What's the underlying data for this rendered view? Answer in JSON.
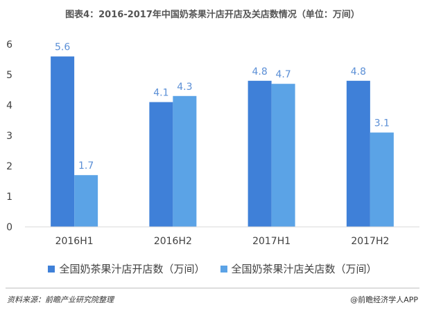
{
  "chart_data": {
    "type": "bar",
    "title": "图表4：2016-2017年中国奶茶果汁店开店及关店数情况（单位：万间）",
    "categories": [
      "2016H1",
      "2016H2",
      "2017H1",
      "2017H2"
    ],
    "series": [
      {
        "name": "全国奶茶果汁店开店数（万间）",
        "values": [
          5.6,
          4.1,
          4.8,
          4.8
        ],
        "color": "#3f80d8"
      },
      {
        "name": "全国奶茶果汁店关店数（万间）",
        "values": [
          1.7,
          4.3,
          4.7,
          3.1
        ],
        "color": "#5ba3e6"
      }
    ],
    "ylim": [
      0,
      6
    ],
    "yticks": [
      "0",
      "1",
      "2",
      "3",
      "4",
      "5",
      "6"
    ],
    "grid": false,
    "legend_position": "bottom",
    "label_color": "#5b8fd6"
  },
  "footer": {
    "source": "资料来源：前瞻产业研究院整理",
    "credit": "@前瞻经济学人APP"
  }
}
